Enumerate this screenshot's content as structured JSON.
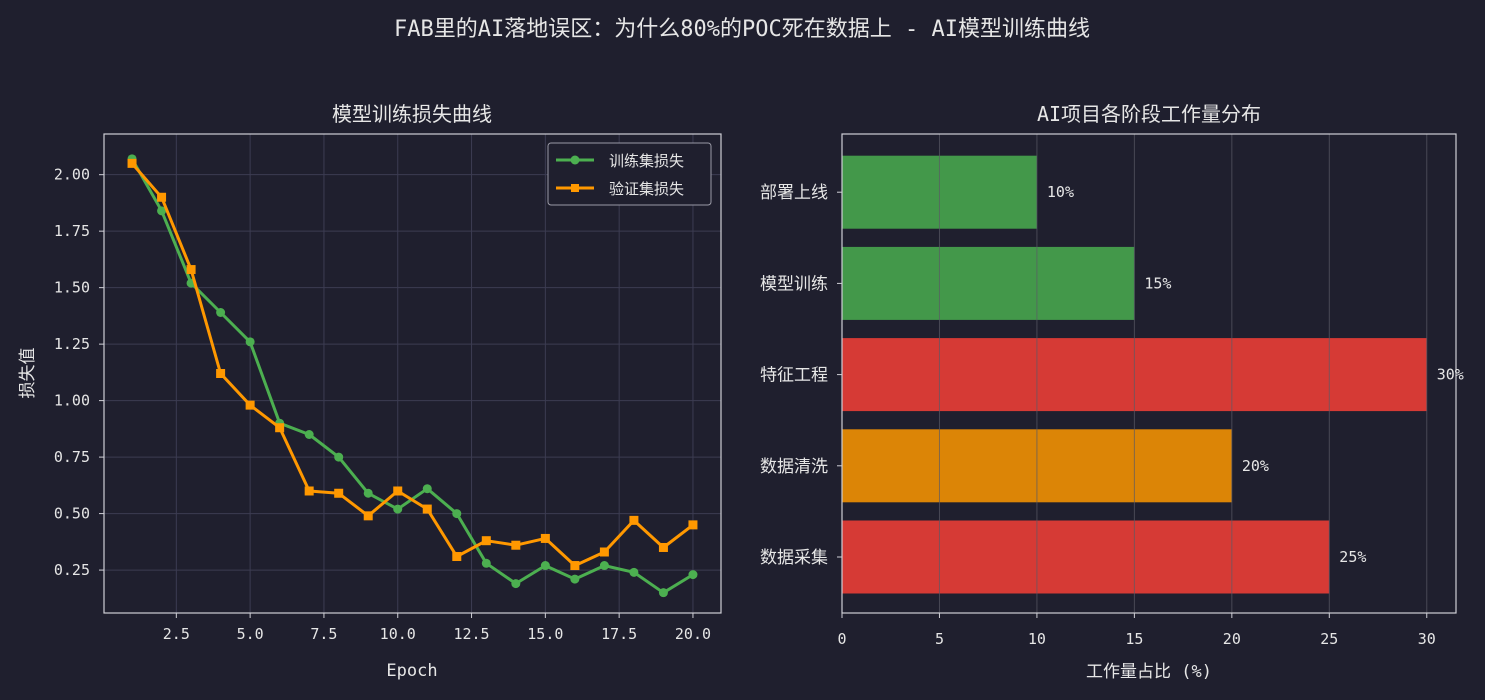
{
  "suptitle": "FAB里的AI落地误区：为什么80%的POC死在数据上 - AI模型训练曲线",
  "colors": {
    "background": "#1f1f2e",
    "train": "#4caf50",
    "val": "#ff9800",
    "red": "#d63a35",
    "green": "#43984a",
    "orange": "#dc8506"
  },
  "chart_data": [
    {
      "type": "line",
      "title": "模型训练损失曲线",
      "xlabel": "Epoch",
      "ylabel": "损失值",
      "xlim": [
        0.05,
        20.95
      ],
      "ylim": [
        0.06,
        2.18
      ],
      "xticks": [
        "2.5",
        "5.0",
        "7.5",
        "10.0",
        "12.5",
        "15.0",
        "17.5",
        "20.0"
      ],
      "yticks": [
        "0.25",
        "0.50",
        "0.75",
        "1.00",
        "1.25",
        "1.50",
        "1.75",
        "2.00"
      ],
      "grid": true,
      "legend_position": "upper-right",
      "x": [
        1,
        2,
        3,
        4,
        5,
        6,
        7,
        8,
        9,
        10,
        11,
        12,
        13,
        14,
        15,
        16,
        17,
        18,
        19,
        20
      ],
      "series": [
        {
          "name": "训练集损失",
          "marker": "circle",
          "values": [
            2.07,
            1.84,
            1.52,
            1.39,
            1.26,
            0.9,
            0.85,
            0.75,
            0.59,
            0.52,
            0.61,
            0.5,
            0.28,
            0.19,
            0.27,
            0.21,
            0.27,
            0.24,
            0.15,
            0.23
          ]
        },
        {
          "name": "验证集损失",
          "marker": "square",
          "values": [
            2.05,
            1.9,
            1.58,
            1.12,
            0.98,
            0.88,
            0.6,
            0.59,
            0.49,
            0.6,
            0.52,
            0.31,
            0.38,
            0.36,
            0.39,
            0.27,
            0.33,
            0.47,
            0.35,
            0.45
          ]
        }
      ]
    },
    {
      "type": "bar",
      "orientation": "horizontal",
      "title": "AI项目各阶段工作量分布",
      "xlabel": "工作量占比 (%)",
      "xlim": [
        0,
        31.5
      ],
      "xticks": [
        "0",
        "5",
        "10",
        "15",
        "20",
        "25",
        "30"
      ],
      "grid": "vertical",
      "categories": [
        "数据采集",
        "数据清洗",
        "特征工程",
        "模型训练",
        "部署上线"
      ],
      "values": [
        25,
        20,
        30,
        15,
        10
      ],
      "value_labels": [
        "25%",
        "20%",
        "30%",
        "15%",
        "10%"
      ],
      "bar_colors": [
        "#d63a35",
        "#dc8506",
        "#d63a35",
        "#43984a",
        "#43984a"
      ]
    }
  ]
}
